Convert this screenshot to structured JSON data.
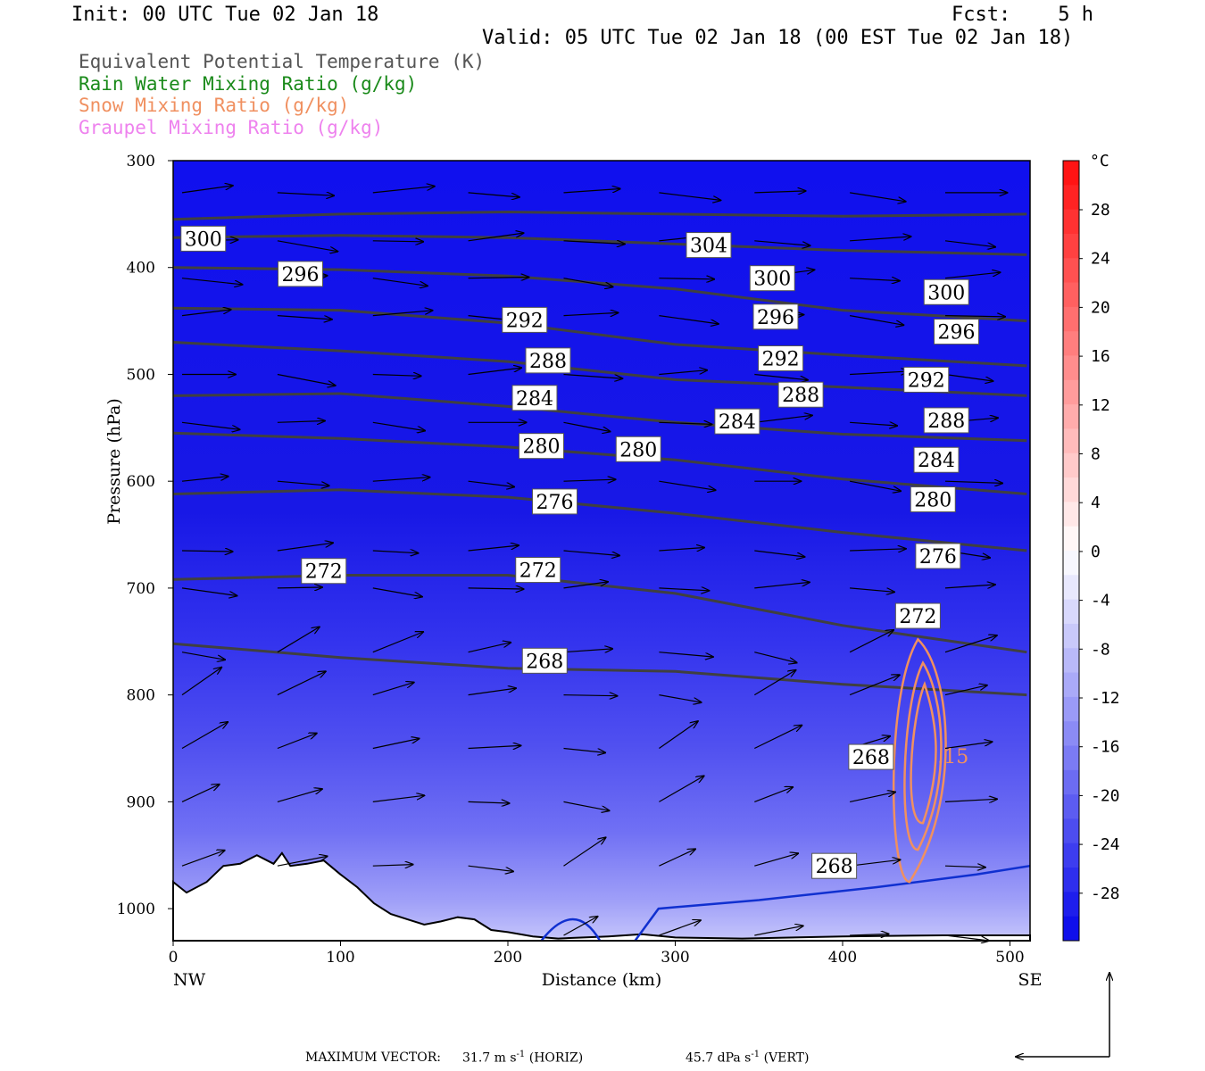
{
  "header": {
    "init": "Init: 00 UTC Tue 02 Jan 18",
    "fcst": "Fcst:    5 h",
    "valid": "Valid: 05 UTC Tue 02 Jan 18 (00 EST Tue 02 Jan 18)"
  },
  "legend": [
    {
      "label": "Equivalent Potential Temperature (K)",
      "color": "#555555"
    },
    {
      "label": "Rain Water Mixing Ratio (g/kg)",
      "color": "#1a8a1a"
    },
    {
      "label": "Snow Mixing Ratio (g/kg)",
      "color": "#f09060"
    },
    {
      "label": "Graupel Mixing Ratio (g/kg)",
      "color": "#ee82ee"
    }
  ],
  "colorbar": {
    "unit": "°C",
    "labels": [
      "28",
      "24",
      "20",
      "16",
      "12",
      "8",
      "4",
      "0",
      "-4",
      "-8",
      "-12",
      "-16",
      "-20",
      "-24",
      "-28"
    ]
  },
  "chart_data": {
    "type": "contour cross-section",
    "xlabel": "Distance (km)",
    "ylabel": "Pressure (hPa)",
    "x_ticks": [
      0,
      100,
      200,
      300,
      400,
      500
    ],
    "y_ticks": [
      300,
      400,
      500,
      600,
      700,
      800,
      900,
      1000
    ],
    "xlim": [
      0,
      512
    ],
    "ylim": [
      1030,
      300
    ],
    "endpoints": {
      "left": "NW",
      "right": "SE"
    },
    "fill_variable": "temperature (°C)",
    "fill_range": [
      -32,
      32
    ],
    "theta_e_contours": [
      {
        "value": 304,
        "p": [
          355,
          350,
          348,
          350,
          352,
          350
        ]
      },
      {
        "value": 300,
        "p": [
          372,
          370,
          372,
          378,
          384,
          388
        ]
      },
      {
        "value": 296,
        "p": [
          400,
          402,
          408,
          420,
          440,
          450
        ]
      },
      {
        "value": 292,
        "p": [
          438,
          440,
          452,
          472,
          482,
          492
        ]
      },
      {
        "value": 288,
        "p": [
          470,
          478,
          488,
          505,
          512,
          520
        ]
      },
      {
        "value": 284,
        "p": [
          520,
          518,
          530,
          545,
          556,
          562
        ]
      },
      {
        "value": 280,
        "p": [
          555,
          560,
          568,
          580,
          598,
          612
        ]
      },
      {
        "value": 276,
        "p": [
          612,
          608,
          615,
          630,
          648,
          665
        ]
      },
      {
        "value": 272,
        "p": [
          692,
          688,
          688,
          705,
          735,
          760
        ]
      },
      {
        "value": 268,
        "p": [
          752,
          765,
          775,
          778,
          790,
          800
        ]
      }
    ],
    "theta_e_x": [
      0,
      100,
      200,
      300,
      400,
      510
    ],
    "contour_labels": [
      {
        "text": "300",
        "x": 18,
        "p": 373
      },
      {
        "text": "304",
        "x": 320,
        "p": 379
      },
      {
        "text": "296",
        "x": 76,
        "p": 406
      },
      {
        "text": "300",
        "x": 358,
        "p": 410
      },
      {
        "text": "300",
        "x": 462,
        "p": 423
      },
      {
        "text": "292",
        "x": 210,
        "p": 449
      },
      {
        "text": "296",
        "x": 360,
        "p": 446
      },
      {
        "text": "296",
        "x": 468,
        "p": 460
      },
      {
        "text": "288",
        "x": 224,
        "p": 487
      },
      {
        "text": "292",
        "x": 363,
        "p": 485
      },
      {
        "text": "292",
        "x": 450,
        "p": 505
      },
      {
        "text": "284",
        "x": 216,
        "p": 522
      },
      {
        "text": "288",
        "x": 375,
        "p": 519
      },
      {
        "text": "284",
        "x": 337,
        "p": 544
      },
      {
        "text": "288",
        "x": 462,
        "p": 543
      },
      {
        "text": "280",
        "x": 220,
        "p": 567
      },
      {
        "text": "280",
        "x": 278,
        "p": 570
      },
      {
        "text": "284",
        "x": 456,
        "p": 580
      },
      {
        "text": "276",
        "x": 228,
        "p": 619
      },
      {
        "text": "280",
        "x": 454,
        "p": 617
      },
      {
        "text": "272",
        "x": 90,
        "p": 684
      },
      {
        "text": "272",
        "x": 218,
        "p": 683
      },
      {
        "text": "276",
        "x": 457,
        "p": 670
      },
      {
        "text": "272",
        "x": 445,
        "p": 726
      },
      {
        "text": "268",
        "x": 222,
        "p": 768
      },
      {
        "text": "268",
        "x": 417,
        "p": 858
      },
      {
        "text": "268",
        "x": 395,
        "p": 960
      }
    ],
    "snow_max_label": ".15",
    "max_vector": {
      "prefix": "MAXIMUM VECTOR:",
      "horiz_value": "31.7 m s",
      "horiz_unit": "(HORIZ)",
      "vert_value": "45.7 dPa s",
      "vert_unit": "(VERT)",
      "exponent": "-1"
    }
  }
}
